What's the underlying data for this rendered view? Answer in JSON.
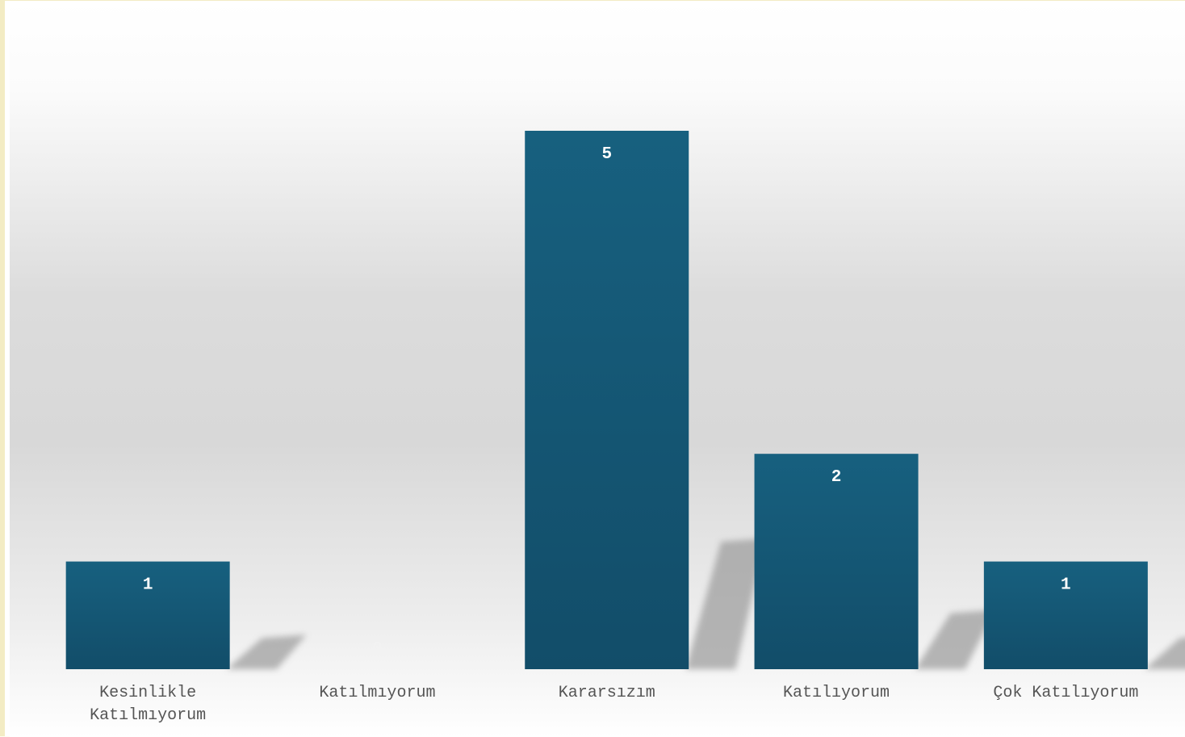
{
  "chart_data": {
    "type": "bar",
    "categories": [
      "Kesinlikle Katılmıyorum",
      "Katılmıyorum",
      "Kararsızım",
      "Katılıyorum",
      "Çok Katılıyorum"
    ],
    "values": [
      1,
      0,
      5,
      2,
      1
    ],
    "value_labels": [
      "1",
      "0",
      "5",
      "2",
      "1"
    ],
    "ylim": [
      0,
      5
    ],
    "grid": false,
    "legend": "none",
    "colors": {
      "bar_top": "#17607f",
      "bar_bottom": "#124d69",
      "bar_label": "#ffffff",
      "zero_label": "#f2f2f2",
      "category_label": "#555555",
      "shadow": "#9a9a9a",
      "bg_top": "#ffffff",
      "bg_mid": "#d9d9d9"
    }
  }
}
